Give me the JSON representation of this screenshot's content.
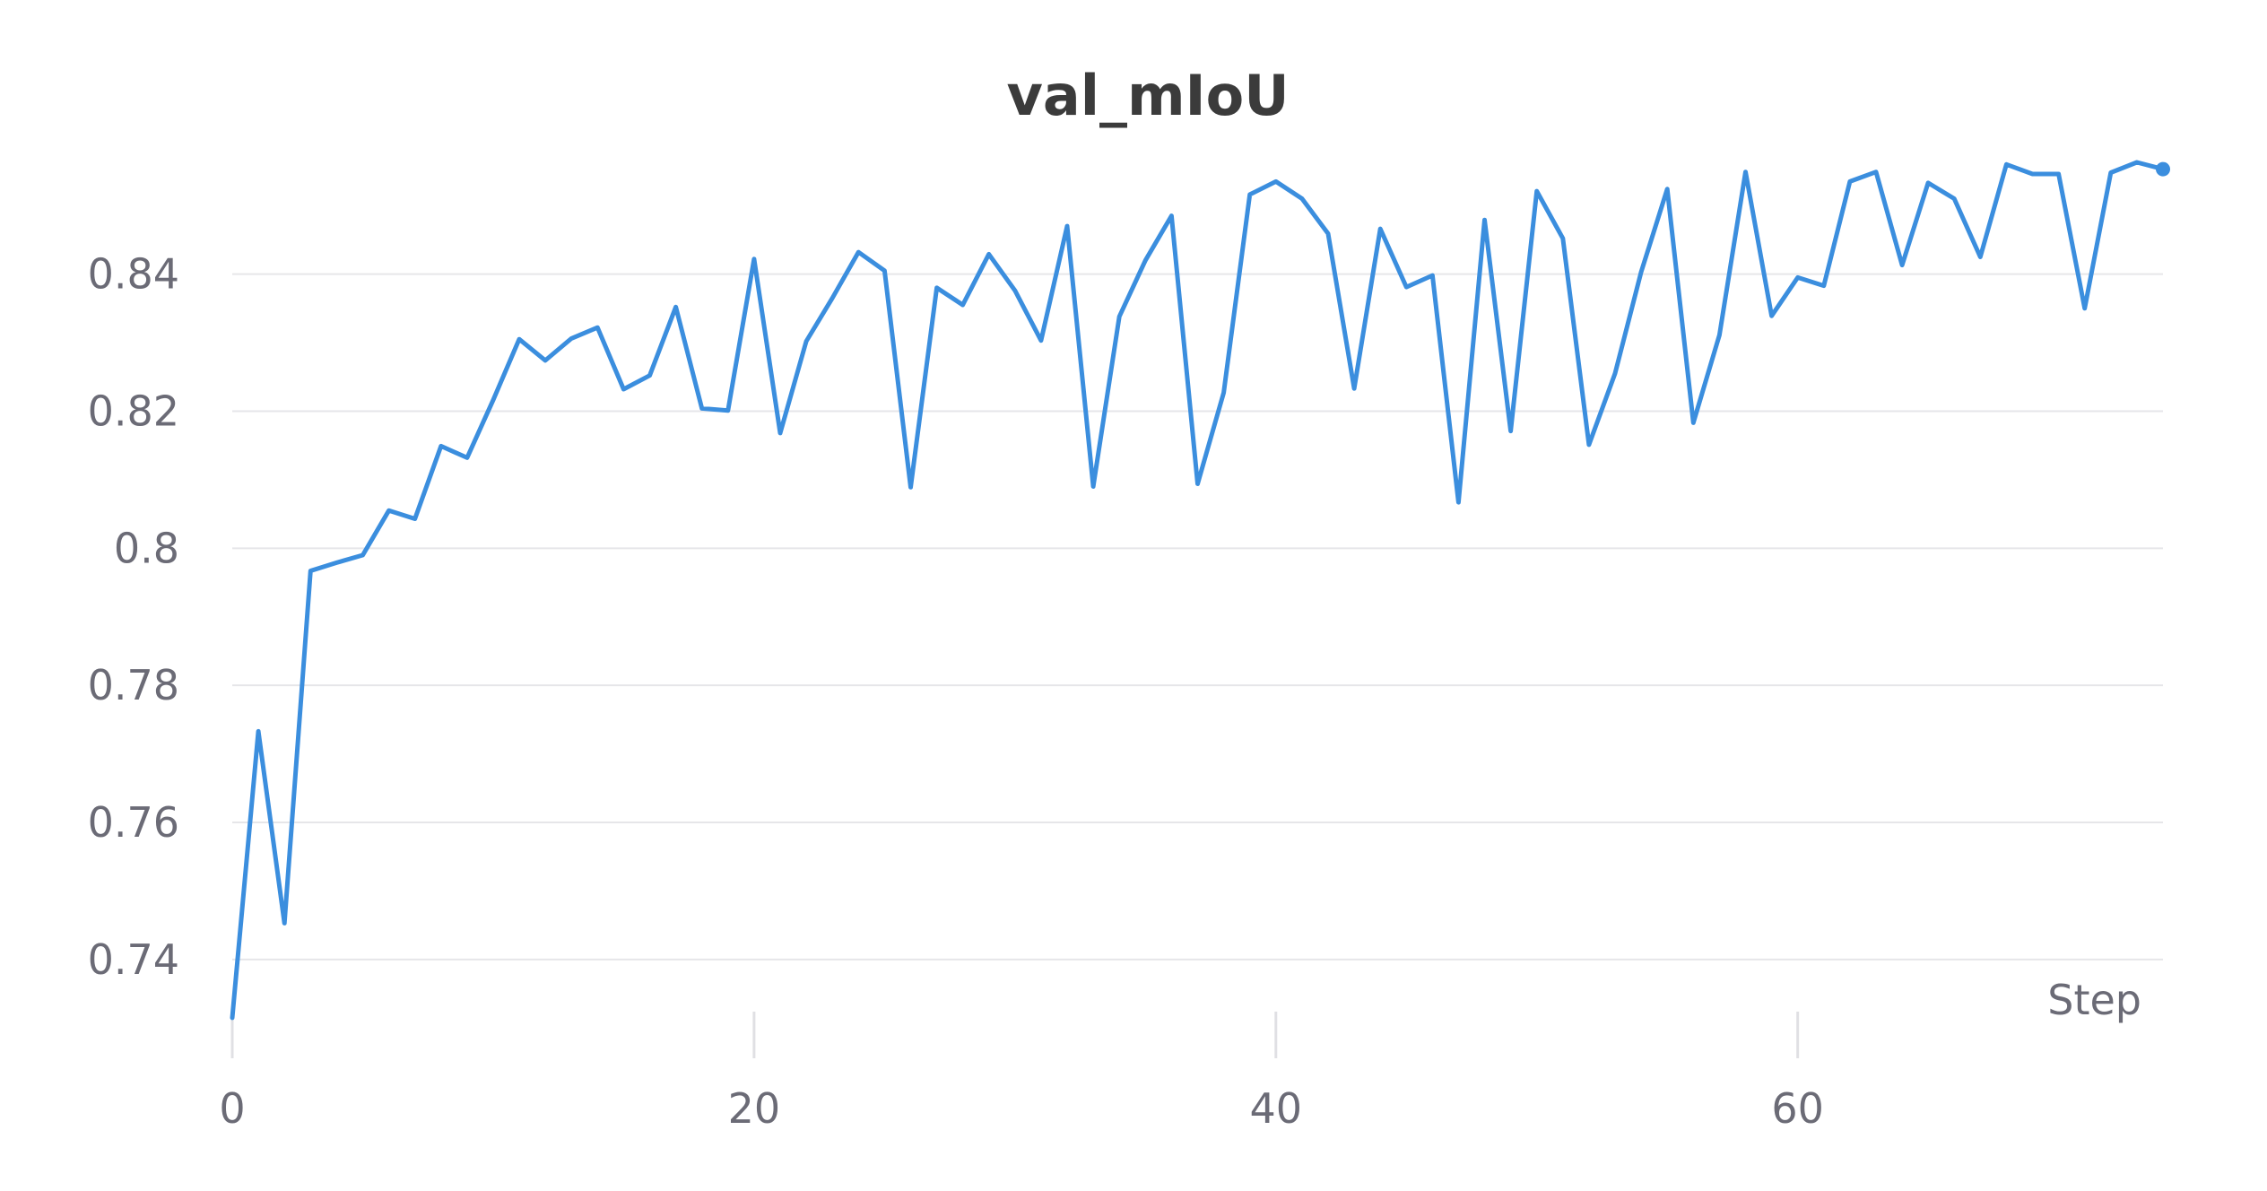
{
  "chart_data": {
    "type": "line",
    "title": "val_mIoU",
    "xlabel": "Step",
    "ylabel": "",
    "xlim": [
      0,
      74
    ],
    "ylim": [
      0.729,
      0.858
    ],
    "x_ticks": [
      0,
      20,
      40,
      60
    ],
    "x_tick_labels": [
      "0",
      "20",
      "40",
      "60"
    ],
    "y_ticks": [
      0.74,
      0.76,
      0.78,
      0.8,
      0.82,
      0.84
    ],
    "y_tick_labels": [
      "0.74",
      "0.76",
      "0.78",
      "0.8",
      "0.82",
      "0.84"
    ],
    "grid": "horizontal",
    "line_color": "#3b8ede",
    "series": [
      {
        "x": [
          0,
          1,
          2,
          3,
          4,
          5,
          6,
          7,
          8,
          9,
          10,
          11,
          12,
          13,
          14,
          15,
          16,
          17,
          18,
          19,
          20,
          21,
          22,
          23,
          24,
          25,
          26,
          27,
          28,
          29,
          30,
          31,
          32,
          33,
          34,
          35,
          36,
          37,
          38,
          39,
          40,
          41,
          42,
          43,
          44,
          45,
          46,
          47,
          48,
          49,
          50,
          51,
          52,
          53,
          54,
          55,
          56,
          57,
          58,
          59,
          60,
          61,
          62,
          63,
          64,
          65,
          66,
          67,
          68,
          69,
          70,
          71,
          72,
          73,
          74
        ],
        "values": [
          0.7315,
          0.7733,
          0.7453,
          0.7967,
          0.7979,
          0.799,
          0.8055,
          0.8043,
          0.8149,
          0.8132,
          0.8216,
          0.8305,
          0.8274,
          0.8306,
          0.8322,
          0.8232,
          0.8252,
          0.8352,
          0.8204,
          0.8201,
          0.8422,
          0.8168,
          0.8302,
          0.8365,
          0.8432,
          0.8405,
          0.8089,
          0.838,
          0.8355,
          0.8429,
          0.8376,
          0.8303,
          0.847,
          0.809,
          0.8338,
          0.842,
          0.8485,
          0.8094,
          0.8227,
          0.8516,
          0.8535,
          0.851,
          0.8459,
          0.8233,
          0.8466,
          0.8381,
          0.8398,
          0.8067,
          0.8479,
          0.8171,
          0.8521,
          0.8452,
          0.8151,
          0.8255,
          0.8403,
          0.8524,
          0.8183,
          0.8311,
          0.8549,
          0.8339,
          0.8395,
          0.8383,
          0.8535,
          0.8549,
          0.8413,
          0.8533,
          0.851,
          0.8425,
          0.856,
          0.8546,
          0.8546,
          0.835,
          0.8548,
          0.8563,
          0.8553
        ]
      }
    ]
  }
}
